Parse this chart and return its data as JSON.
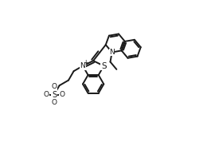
{
  "bg_color": "#ffffff",
  "line_color": "#1a1a1a",
  "line_width": 1.4,
  "figsize": [
    2.7,
    1.88
  ],
  "dpi": 100,
  "C7a": [
    0.37,
    0.5
  ],
  "C3a": [
    0.44,
    0.5
  ],
  "bz_side": 0.07,
  "qs": 0.065,
  "meth_ang": 52,
  "N_q_ang": -50,
  "chain_angs": [
    210,
    240,
    210,
    240
  ],
  "so3_b": 0.052,
  "eth_ang1": -100,
  "eth_ang2": -50
}
